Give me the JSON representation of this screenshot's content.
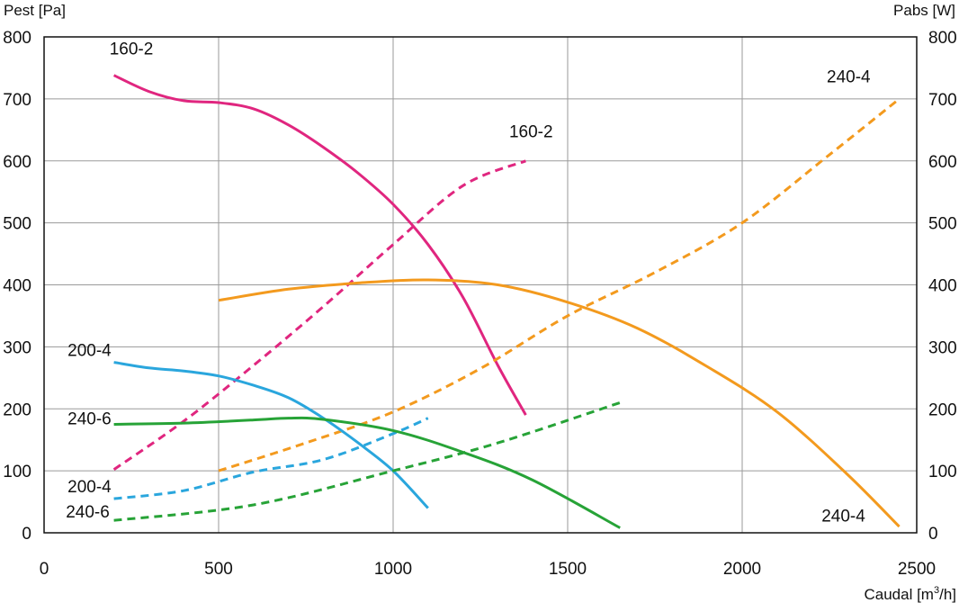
{
  "chart_data": {
    "type": "line",
    "ylabel_left": "Pest [Pa]",
    "ylabel_right": "Pabs [W]",
    "xlabel_text": "Caudal [m",
    "xlabel_sup": "3",
    "xlabel_tail": "/h]",
    "xlim": [
      0,
      2500
    ],
    "ylim": [
      0,
      800
    ],
    "xticks": [
      0,
      500,
      1000,
      1500,
      2000,
      2500
    ],
    "yticks": [
      0,
      100,
      200,
      300,
      400,
      500,
      600,
      700,
      800
    ],
    "grid": true,
    "series": [
      {
        "name": "160-2",
        "kind": "pressure",
        "color": "#e0267f",
        "dash": false,
        "x": [
          200,
          300,
          400,
          500,
          600,
          700,
          800,
          900,
          1000,
          1100,
          1200,
          1300,
          1380
        ],
        "y": [
          738,
          712,
          697,
          694,
          684,
          658,
          622,
          580,
          530,
          465,
          380,
          270,
          190
        ]
      },
      {
        "name": "160-2",
        "kind": "power",
        "color": "#e0267f",
        "dash": true,
        "x": [
          200,
          400,
          600,
          800,
          1000,
          1200,
          1380
        ],
        "y": [
          102,
          180,
          270,
          365,
          465,
          560,
          600
        ]
      },
      {
        "name": "240-4",
        "kind": "pressure",
        "color": "#f39a1e",
        "dash": false,
        "x": [
          500,
          700,
          900,
          1100,
          1300,
          1500,
          1700,
          1900,
          2100,
          2300,
          2450
        ],
        "y": [
          375,
          393,
          403,
          408,
          400,
          372,
          330,
          268,
          195,
          95,
          10
        ]
      },
      {
        "name": "240-4",
        "kind": "power",
        "color": "#f39a1e",
        "dash": true,
        "x": [
          500,
          750,
          1000,
          1250,
          1500,
          1750,
          2000,
          2250,
          2450
        ],
        "y": [
          100,
          145,
          195,
          265,
          350,
          420,
          500,
          610,
          700
        ]
      },
      {
        "name": "200-4",
        "kind": "pressure",
        "color": "#2aa6dd",
        "dash": false,
        "x": [
          200,
          300,
          400,
          500,
          600,
          700,
          800,
          900,
          1000,
          1100
        ],
        "y": [
          275,
          266,
          261,
          253,
          238,
          218,
          185,
          145,
          100,
          40
        ]
      },
      {
        "name": "200-4",
        "kind": "power",
        "color": "#2aa6dd",
        "dash": true,
        "x": [
          200,
          400,
          600,
          800,
          1000,
          1100
        ],
        "y": [
          55,
          68,
          98,
          118,
          160,
          185
        ]
      },
      {
        "name": "240-6",
        "kind": "pressure",
        "color": "#27a337",
        "dash": false,
        "x": [
          200,
          400,
          600,
          700,
          800,
          1000,
          1200,
          1400,
          1650
        ],
        "y": [
          175,
          177,
          182,
          185,
          183,
          165,
          130,
          85,
          8
        ]
      },
      {
        "name": "240-6",
        "kind": "power",
        "color": "#27a337",
        "dash": true,
        "x": [
          200,
          600,
          1000,
          1300,
          1650
        ],
        "y": [
          20,
          45,
          100,
          145,
          210
        ]
      }
    ],
    "labels": [
      {
        "text": "160-2",
        "x": 250,
        "y": 772
      },
      {
        "text": "160-2",
        "x": 1395,
        "y": 638
      },
      {
        "text": "240-4",
        "x": 2305,
        "y": 727
      },
      {
        "text": "240-4",
        "x": 2290,
        "y": 18
      },
      {
        "text": "200-4",
        "x": 130,
        "y": 285
      },
      {
        "text": "200-4",
        "x": 130,
        "y": 65
      },
      {
        "text": "240-6",
        "x": 130,
        "y": 175
      },
      {
        "text": "240-6",
        "x": 125,
        "y": 25
      }
    ]
  }
}
